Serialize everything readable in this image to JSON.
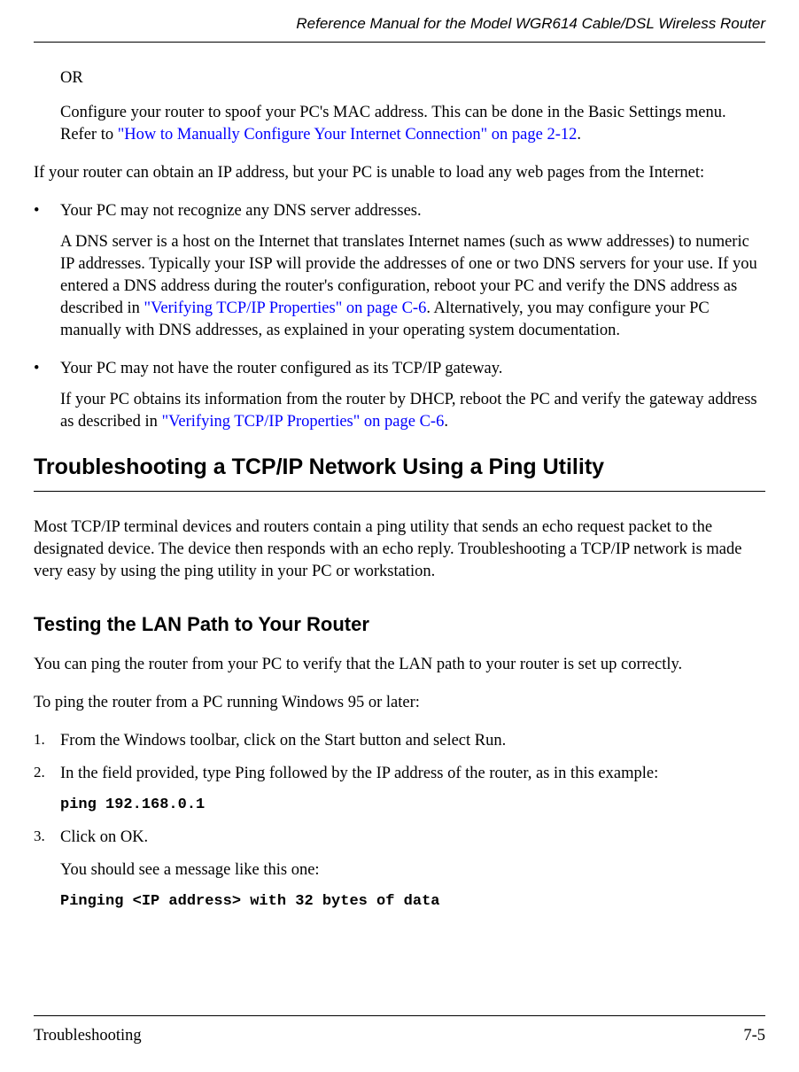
{
  "header": {
    "title": "Reference Manual for the Model WGR614 Cable/DSL Wireless Router"
  },
  "body": {
    "or_text": "OR",
    "spoof_para_a": "Configure your router to spoof your PC's MAC address. This can be done in the Basic Settings menu. Refer to ",
    "spoof_link": "\"How to Manually Configure Your Internet Connection\" on page 2-12",
    "spoof_para_b": ".",
    "obtain_ip": "If your router can obtain an IP address, but your PC is unable to load any web pages from the Internet:",
    "bullet1_head": "Your PC may not recognize any DNS server addresses.",
    "bullet1_body_a": "A DNS server is a host on the Internet that translates Internet names (such as www addresses) to numeric IP addresses. Typically your ISP will provide the addresses of one or two DNS servers for your use. If you entered a DNS address during the router's configuration, reboot your PC and verify the DNS address as described in ",
    "bullet1_link": "\"Verifying TCP/IP Properties\" on page C-6",
    "bullet1_body_b": ". Alternatively, you may configure your PC manually with DNS addresses, as explained in your operating system documentation.",
    "bullet2_head": "Your PC may not have the router configured as its TCP/IP gateway.",
    "bullet2_body_a": "If your PC obtains its information from the router by DHCP, reboot the PC and verify the gateway address as described in ",
    "bullet2_link": "\"Verifying TCP/IP Properties\" on page C-6",
    "bullet2_body_b": ".",
    "h1": "Troubleshooting a TCP/IP Network Using a Ping Utility",
    "h1_para": "Most TCP/IP terminal devices and routers contain a ping utility that sends an echo request packet to the designated device. The device then responds with an echo reply. Troubleshooting a TCP/IP network is made very easy by using the ping utility in your PC or workstation.",
    "h2": "Testing the LAN Path to Your Router",
    "h2_para1": "You can ping the router from your PC to verify that the LAN path to your router is set up correctly.",
    "h2_para2": "To ping the router from a PC running Windows 95 or later:",
    "steps": {
      "s1_num": "1.",
      "s1": "From the Windows toolbar, click on the Start button and select Run.",
      "s2_num": "2.",
      "s2": "In the field provided, type Ping followed by the IP address of the router, as in this example:",
      "s2_code": "ping 192.168.0.1",
      "s3_num": "3.",
      "s3": "Click on OK.",
      "s3_sub": "You should see a message like this one:",
      "s3_code": "Pinging <IP address> with 32 bytes of data"
    }
  },
  "footer": {
    "left": "Troubleshooting",
    "right": "7-5"
  }
}
